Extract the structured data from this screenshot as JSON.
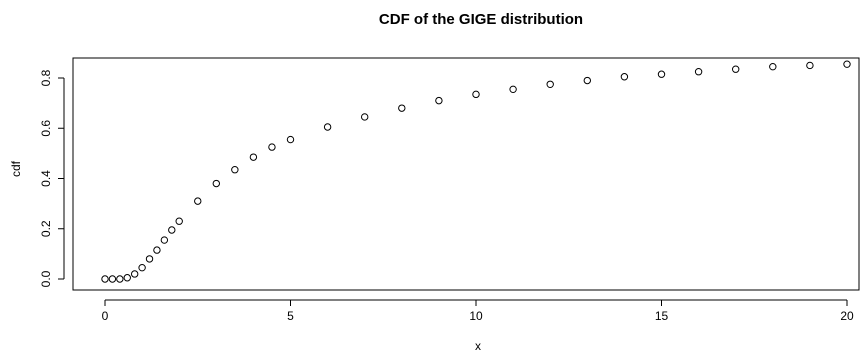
{
  "chart_data": {
    "type": "scatter",
    "title": "CDF of the GIGE distribution",
    "xlabel": "x",
    "ylabel": "cdf",
    "xlim": [
      0,
      20
    ],
    "ylim": [
      0,
      0.85
    ],
    "x_ticks": [
      0,
      5,
      10,
      15,
      20
    ],
    "x_tick_labels": [
      "0",
      "5",
      "10",
      "15",
      "20"
    ],
    "y_ticks": [
      0.0,
      0.2,
      0.4,
      0.6,
      0.8
    ],
    "y_tick_labels": [
      "0.0",
      "0.2",
      "0.4",
      "0.6",
      "0.8"
    ],
    "grid": false,
    "marker": "open-circle",
    "series": [
      {
        "points": [
          [
            0.0,
            0.0
          ],
          [
            0.2,
            0.0
          ],
          [
            0.4,
            0.0
          ],
          [
            0.6,
            0.005
          ],
          [
            0.8,
            0.02
          ],
          [
            1.0,
            0.045
          ],
          [
            1.2,
            0.08
          ],
          [
            1.4,
            0.115
          ],
          [
            1.6,
            0.155
          ],
          [
            1.8,
            0.195
          ],
          [
            2.0,
            0.23
          ],
          [
            2.5,
            0.31
          ],
          [
            3.0,
            0.38
          ],
          [
            3.5,
            0.435
          ],
          [
            4.0,
            0.485
          ],
          [
            4.5,
            0.525
          ],
          [
            5.0,
            0.555
          ],
          [
            6.0,
            0.605
          ],
          [
            7.0,
            0.645
          ],
          [
            8.0,
            0.68
          ],
          [
            9.0,
            0.71
          ],
          [
            10.0,
            0.735
          ],
          [
            11.0,
            0.755
          ],
          [
            12.0,
            0.775
          ],
          [
            13.0,
            0.79
          ],
          [
            14.0,
            0.805
          ],
          [
            15.0,
            0.815
          ],
          [
            16.0,
            0.825
          ],
          [
            17.0,
            0.835
          ],
          [
            18.0,
            0.845
          ],
          [
            19.0,
            0.85
          ],
          [
            20.0,
            0.855
          ]
        ]
      }
    ]
  }
}
